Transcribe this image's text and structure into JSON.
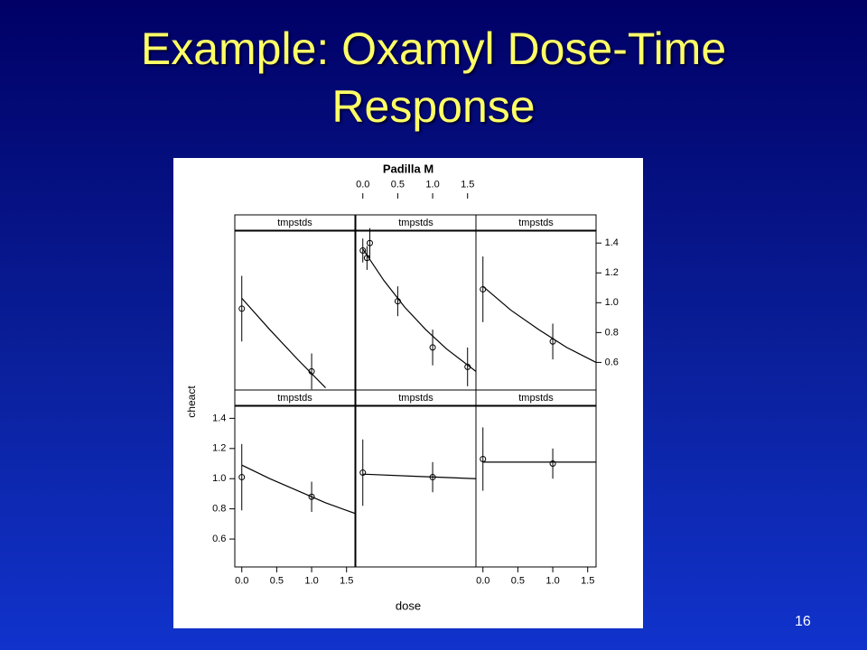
{
  "title": "Example: Oxamyl Dose-Time Response",
  "page_number": "16",
  "chart_data": {
    "type": "trellis",
    "title": "Padilla M",
    "xlabel": "dose",
    "ylabel": "cheact",
    "xlim": [
      -0.1,
      1.62
    ],
    "ylim": [
      0.415,
      1.48
    ],
    "xticks": [
      {
        "value": 0,
        "label": "0.0"
      },
      0.5,
      {
        "value": 1,
        "label": "1.0"
      },
      1.5
    ],
    "yticks": [
      0.6,
      0.8,
      {
        "value": 1,
        "label": "1.0"
      },
      1.2,
      1.4
    ],
    "color": "#000000",
    "panels": [
      {
        "strip": "tmpstds",
        "x": [
          0,
          1
        ],
        "y": [
          1.01,
          0.88
        ],
        "err": [
          0.22,
          0.1
        ],
        "fit_x": [
          0,
          0.4,
          0.8,
          1.2,
          1.62
        ],
        "fit_y": [
          1.09,
          1.0,
          0.92,
          0.84,
          0.77
        ]
      },
      {
        "strip": "tmpstds",
        "x": [
          0,
          1
        ],
        "y": [
          1.04,
          1.01
        ],
        "err": [
          0.22,
          0.1
        ],
        "fit_x": [
          0,
          0.8,
          1.62
        ],
        "fit_y": [
          1.03,
          1.015,
          1.0
        ]
      },
      {
        "strip": "tmpstds",
        "x": [
          0,
          1
        ],
        "y": [
          1.13,
          1.1
        ],
        "err": [
          0.21,
          0.1
        ],
        "fit_x": [
          0,
          1.62
        ],
        "fit_y": [
          1.11,
          1.11
        ]
      },
      {
        "strip": "tmpstds",
        "x": [
          0,
          1
        ],
        "y": [
          0.96,
          0.54
        ],
        "err": [
          0.22,
          0.12
        ],
        "fit_x": [
          0,
          0.4,
          0.8,
          1.2
        ],
        "fit_y": [
          1.03,
          0.82,
          0.62,
          0.43
        ]
      },
      {
        "strip": "tmpstds",
        "x": [
          0,
          0.06,
          0.1,
          0.5,
          1,
          1.5
        ],
        "y": [
          1.35,
          1.3,
          1.4,
          1.01,
          0.7,
          0.57
        ],
        "err": [
          0.08,
          0.08,
          0.1,
          0.1,
          0.12,
          0.13
        ],
        "fit_x": [
          0,
          0.3,
          0.6,
          0.9,
          1.2,
          1.62
        ],
        "fit_y": [
          1.36,
          1.15,
          0.97,
          0.82,
          0.69,
          0.54
        ]
      },
      {
        "strip": "tmpstds",
        "x": [
          0,
          1
        ],
        "y": [
          1.09,
          0.74
        ],
        "err": [
          0.22,
          0.12
        ],
        "fit_x": [
          0,
          0.4,
          0.8,
          1.2,
          1.62
        ],
        "fit_y": [
          1.11,
          0.95,
          0.82,
          0.7,
          0.6
        ]
      }
    ]
  }
}
